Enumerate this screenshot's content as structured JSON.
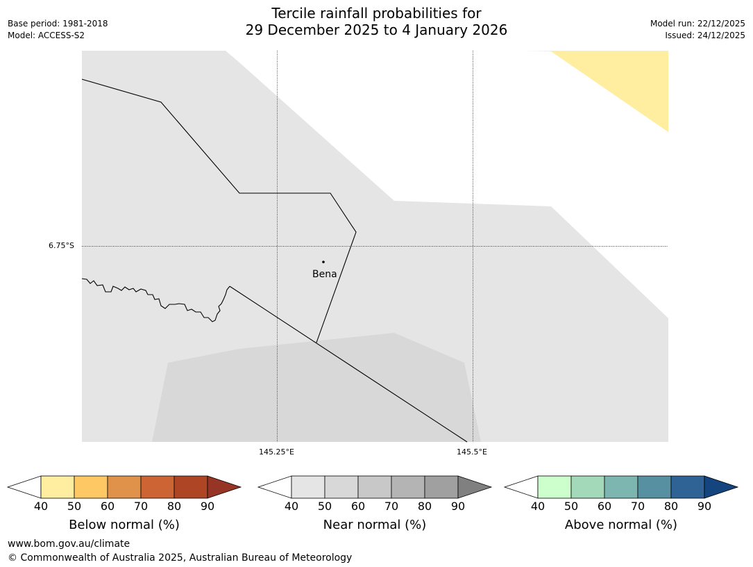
{
  "title": {
    "line1": "Tercile rainfall probabilities for",
    "line2": "29 December 2025 to 4 January 2026"
  },
  "meta": {
    "base_period": "Base period: 1981-2018",
    "model": "Model: ACCESS-S2",
    "model_run": "Model run: 22/12/2025",
    "issued": "Issued: 24/12/2025"
  },
  "map": {
    "lat_label": "6.75°S",
    "lon_labels": [
      "145.25°E",
      "145.5°E"
    ],
    "place_name": "Bena",
    "colors": {
      "near_40_50": "#e5e5e5",
      "near_50_60": "#d8d8d8",
      "below_40_50": "#ffeda0"
    }
  },
  "colorbars": {
    "ticks": [
      "40",
      "50",
      "60",
      "70",
      "80",
      "90"
    ],
    "below": {
      "label": "Below normal (%)",
      "colors": [
        "#ffeda0",
        "#fec965",
        "#e0914a",
        "#cc6433",
        "#ae4626",
        "#963525"
      ]
    },
    "near": {
      "label": "Near normal (%)",
      "colors": [
        "#e5e5e5",
        "#d8d8d8",
        "#c8c8c8",
        "#b4b4b4",
        "#a0a0a0",
        "#808080"
      ]
    },
    "above": {
      "label": "Above normal (%)",
      "colors": [
        "#ccffcc",
        "#a3d9b9",
        "#7db5b0",
        "#5790a0",
        "#2f6295",
        "#15457e"
      ]
    }
  },
  "footer": {
    "url": "www.bom.gov.au/climate",
    "copyright": "© Commonwealth of Australia 2025, Australian Bureau of Meteorology"
  }
}
